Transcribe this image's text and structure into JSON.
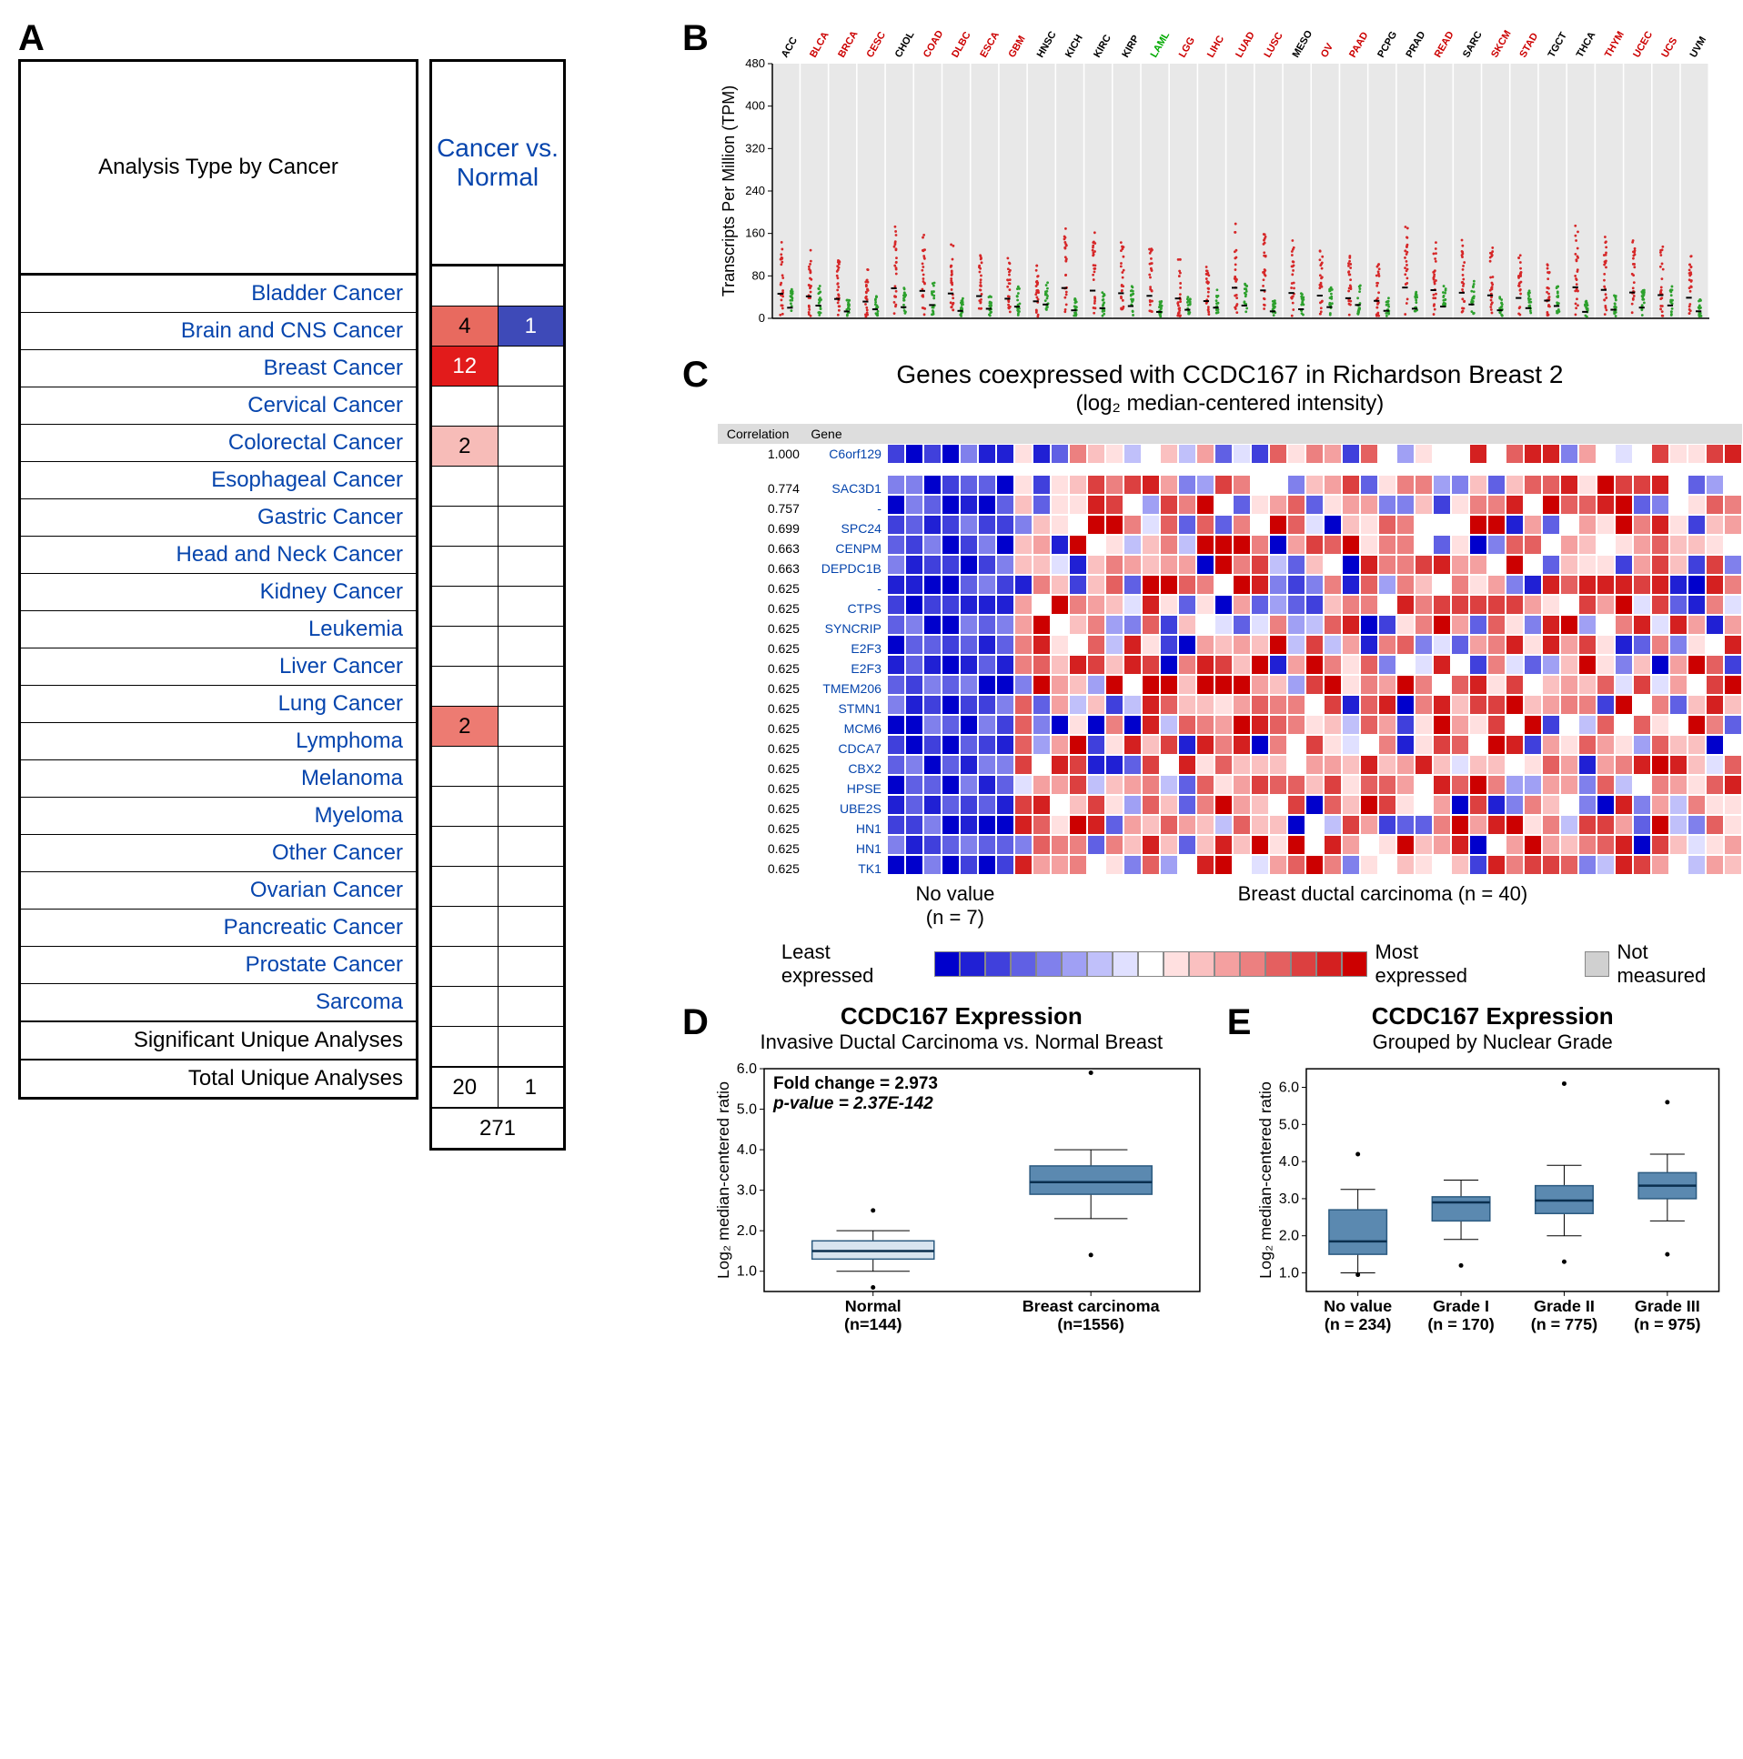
{
  "panelA": {
    "label": "A",
    "header_left": "Analysis Type by Cancer",
    "header_right": "Cancer vs. Normal",
    "cancers": [
      {
        "name": "Bladder Cancer",
        "up": null,
        "down": null
      },
      {
        "name": "Brain and CNS Cancer",
        "up": 4,
        "down": 1,
        "up_color": "#e86a5f",
        "down_color": "#3e4ab8"
      },
      {
        "name": "Breast Cancer",
        "up": 12,
        "down": null,
        "up_color": "#e21b1b",
        "up_text": "#ffffff"
      },
      {
        "name": "Cervical Cancer",
        "up": null,
        "down": null
      },
      {
        "name": "Colorectal Cancer",
        "up": 2,
        "down": null,
        "up_color": "#f7bcb8"
      },
      {
        "name": "Esophageal Cancer",
        "up": null,
        "down": null
      },
      {
        "name": "Gastric Cancer",
        "up": null,
        "down": null
      },
      {
        "name": "Head and Neck Cancer",
        "up": null,
        "down": null
      },
      {
        "name": "Kidney Cancer",
        "up": null,
        "down": null
      },
      {
        "name": "Leukemia",
        "up": null,
        "down": null
      },
      {
        "name": "Liver Cancer",
        "up": null,
        "down": null
      },
      {
        "name": "Lung Cancer",
        "up": 2,
        "down": null,
        "up_color": "#ed7b72"
      },
      {
        "name": "Lymphoma",
        "up": null,
        "down": null
      },
      {
        "name": "Melanoma",
        "up": null,
        "down": null
      },
      {
        "name": "Myeloma",
        "up": null,
        "down": null
      },
      {
        "name": "Other Cancer",
        "up": null,
        "down": null
      },
      {
        "name": "Ovarian Cancer",
        "up": null,
        "down": null
      },
      {
        "name": "Pancreatic Cancer",
        "up": null,
        "down": null
      },
      {
        "name": "Prostate Cancer",
        "up": null,
        "down": null
      },
      {
        "name": "Sarcoma",
        "up": null,
        "down": null
      }
    ],
    "footer_sig": "Significant Unique Analyses",
    "footer_total": "Total Unique Analyses",
    "sig_up": 20,
    "sig_down": 1,
    "total": 271
  },
  "panelB": {
    "label": "B",
    "ylabel": "Transcripts Per Million (TPM)",
    "ylim": [
      0,
      480
    ],
    "yticks": [
      0,
      80,
      160,
      240,
      320,
      400,
      480
    ],
    "categories": [
      "ACC",
      "BLCA",
      "BRCA",
      "CESC",
      "CHOL",
      "COAD",
      "DLBC",
      "ESCA",
      "GBM",
      "HNSC",
      "KICH",
      "KIRC",
      "KIRP",
      "LAML",
      "LGG",
      "LIHC",
      "LUAD",
      "LUSC",
      "MESO",
      "OV",
      "PAAD",
      "PCPG",
      "PRAD",
      "READ",
      "SARC",
      "SKCM",
      "STAD",
      "TGCT",
      "THCA",
      "THYM",
      "UCEC",
      "UCS",
      "UVM"
    ],
    "cat_colors": [
      "#000",
      "#c00",
      "#c00",
      "#c00",
      "#000",
      "#c00",
      "#c00",
      "#c00",
      "#c00",
      "#000",
      "#000",
      "#000",
      "#000",
      "#0a0",
      "#c00",
      "#c00",
      "#c00",
      "#c00",
      "#000",
      "#c00",
      "#c00",
      "#000",
      "#000",
      "#c00",
      "#000",
      "#c00",
      "#c00",
      "#000",
      "#000",
      "#c00",
      "#c00",
      "#c00",
      "#000"
    ],
    "tumor_color": "#d62728",
    "normal_color": "#2ca02c",
    "background": "#e8e8e8"
  },
  "panelC": {
    "label": "C",
    "title": "Genes coexpressed with CCDC167 in Richardson Breast 2",
    "subtitle": "(log₂ median-centered intensity)",
    "col_hdr_corr": "Correlation",
    "col_hdr_gene": "Gene",
    "top_gene": {
      "corr": "1.000",
      "gene": "C6orf129"
    },
    "genes": [
      {
        "corr": "0.774",
        "gene": "SAC3D1"
      },
      {
        "corr": "0.757",
        "gene": "-"
      },
      {
        "corr": "0.699",
        "gene": "SPC24"
      },
      {
        "corr": "0.663",
        "gene": "CENPM"
      },
      {
        "corr": "0.663",
        "gene": "DEPDC1B"
      },
      {
        "corr": "0.625",
        "gene": "-"
      },
      {
        "corr": "0.625",
        "gene": "CTPS"
      },
      {
        "corr": "0.625",
        "gene": "SYNCRIP"
      },
      {
        "corr": "0.625",
        "gene": "E2F3"
      },
      {
        "corr": "0.625",
        "gene": "E2F3"
      },
      {
        "corr": "0.625",
        "gene": "TMEM206"
      },
      {
        "corr": "0.625",
        "gene": "STMN1"
      },
      {
        "corr": "0.625",
        "gene": "MCM6"
      },
      {
        "corr": "0.625",
        "gene": "CDCA7"
      },
      {
        "corr": "0.625",
        "gene": "CBX2"
      },
      {
        "corr": "0.625",
        "gene": "HPSE"
      },
      {
        "corr": "0.625",
        "gene": "UBE2S"
      },
      {
        "corr": "0.625",
        "gene": "HN1"
      },
      {
        "corr": "0.625",
        "gene": "HN1"
      },
      {
        "corr": "0.625",
        "gene": "TK1"
      }
    ],
    "n_cols": 47,
    "group1_label": "No value",
    "group1_n": "(n = 7)",
    "group2_label": "Breast ductal carcinoma (n = 40)",
    "legend_least": "Least expressed",
    "legend_most": "Most expressed",
    "legend_nm": "Not measured",
    "ramp": [
      "#0000cc",
      "#2020d4",
      "#4040dc",
      "#6060e4",
      "#8080ec",
      "#a0a0f4",
      "#c0c0fa",
      "#e0e0ff",
      "#ffffff",
      "#ffe0e0",
      "#fac0c0",
      "#f4a0a0",
      "#ec8080",
      "#e46060",
      "#dc4040",
      "#d42020",
      "#cc0000"
    ],
    "nm_color": "#d0d0d0"
  },
  "panelD": {
    "label": "D",
    "title": "CCDC167 Expression",
    "subtitle": "Invasive Ductal Carcinoma vs. Normal Breast",
    "ylabel": "Log₂ median-centered ratio",
    "ylim": [
      0.5,
      6.0
    ],
    "yticks": [
      1.0,
      2.0,
      3.0,
      4.0,
      5.0,
      6.0
    ],
    "annot1": "Fold change = 2.973",
    "annot2": "p-value = 2.37E-142",
    "groups": [
      {
        "name": "Normal",
        "n": "(n=144)",
        "q1": 1.3,
        "med": 1.5,
        "q3": 1.75,
        "wl": 1.0,
        "wh": 2.0,
        "out": [
          2.5,
          0.6
        ],
        "fill": "#d8e4ef"
      },
      {
        "name": "Breast carcinoma",
        "n": "(n=1556)",
        "q1": 2.9,
        "med": 3.2,
        "q3": 3.6,
        "wl": 2.3,
        "wh": 4.0,
        "out": [
          5.9,
          1.4
        ],
        "fill": "#5b89b0"
      }
    ]
  },
  "panelE": {
    "label": "E",
    "title": "CCDC167 Expression",
    "subtitle": "Grouped by Nuclear Grade",
    "ylabel": "Log₂ median-centered ratio",
    "ylim": [
      0.5,
      6.5
    ],
    "yticks": [
      1.0,
      2.0,
      3.0,
      4.0,
      5.0,
      6.0
    ],
    "groups": [
      {
        "name": "No value",
        "n": "(n = 234)",
        "q1": 1.5,
        "med": 1.85,
        "q3": 2.7,
        "wl": 1.0,
        "wh": 3.25,
        "out": [
          4.2,
          0.95
        ],
        "fill": "#5b89b0"
      },
      {
        "name": "Grade I",
        "n": "(n = 170)",
        "q1": 2.4,
        "med": 2.9,
        "q3": 3.05,
        "wl": 1.9,
        "wh": 3.5,
        "out": [
          1.2
        ],
        "fill": "#5b89b0"
      },
      {
        "name": "Grade II",
        "n": "(n = 775)",
        "q1": 2.6,
        "med": 2.95,
        "q3": 3.35,
        "wl": 2.0,
        "wh": 3.9,
        "out": [
          6.1,
          1.3
        ],
        "fill": "#5b89b0"
      },
      {
        "name": "Grade III",
        "n": "(n = 975)",
        "q1": 3.0,
        "med": 3.35,
        "q3": 3.7,
        "wl": 2.4,
        "wh": 4.2,
        "out": [
          5.6,
          1.5
        ],
        "fill": "#5b89b0"
      }
    ]
  }
}
